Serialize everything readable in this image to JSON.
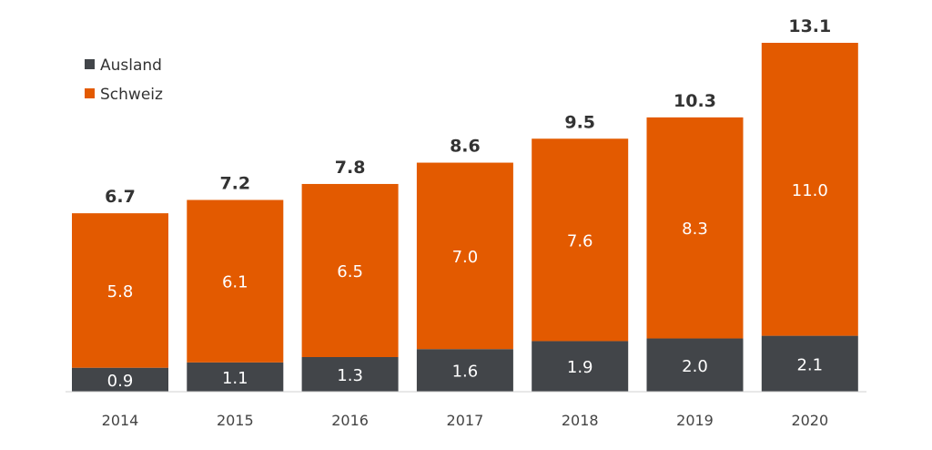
{
  "chart_data": {
    "type": "bar",
    "stacked": true,
    "categories": [
      "2014",
      "2015",
      "2016",
      "2017",
      "2018",
      "2019",
      "2020"
    ],
    "series": [
      {
        "name": "Ausland",
        "color": "#424549",
        "values": [
          0.9,
          1.1,
          1.3,
          1.6,
          1.9,
          2.0,
          2.1
        ]
      },
      {
        "name": "Schweiz",
        "color": "#e35a00",
        "values": [
          5.8,
          6.1,
          6.5,
          7.0,
          7.6,
          8.3,
          11.0
        ]
      }
    ],
    "totals": [
      "6.7",
      "7.2",
      "7.8",
      "8.6",
      "9.5",
      "10.3",
      "13.1"
    ],
    "segment_labels": [
      [
        "0.9",
        "1.1",
        "1.3",
        "1.6",
        "1.9",
        "2.0",
        "2.1"
      ],
      [
        "5.8",
        "6.1",
        "6.5",
        "7.0",
        "7.6",
        "8.3",
        "11.0"
      ]
    ],
    "ylim": [
      0,
      13.1
    ],
    "grid": false,
    "legend": {
      "position": "top-left",
      "order": [
        "Ausland",
        "Schweiz"
      ]
    }
  }
}
